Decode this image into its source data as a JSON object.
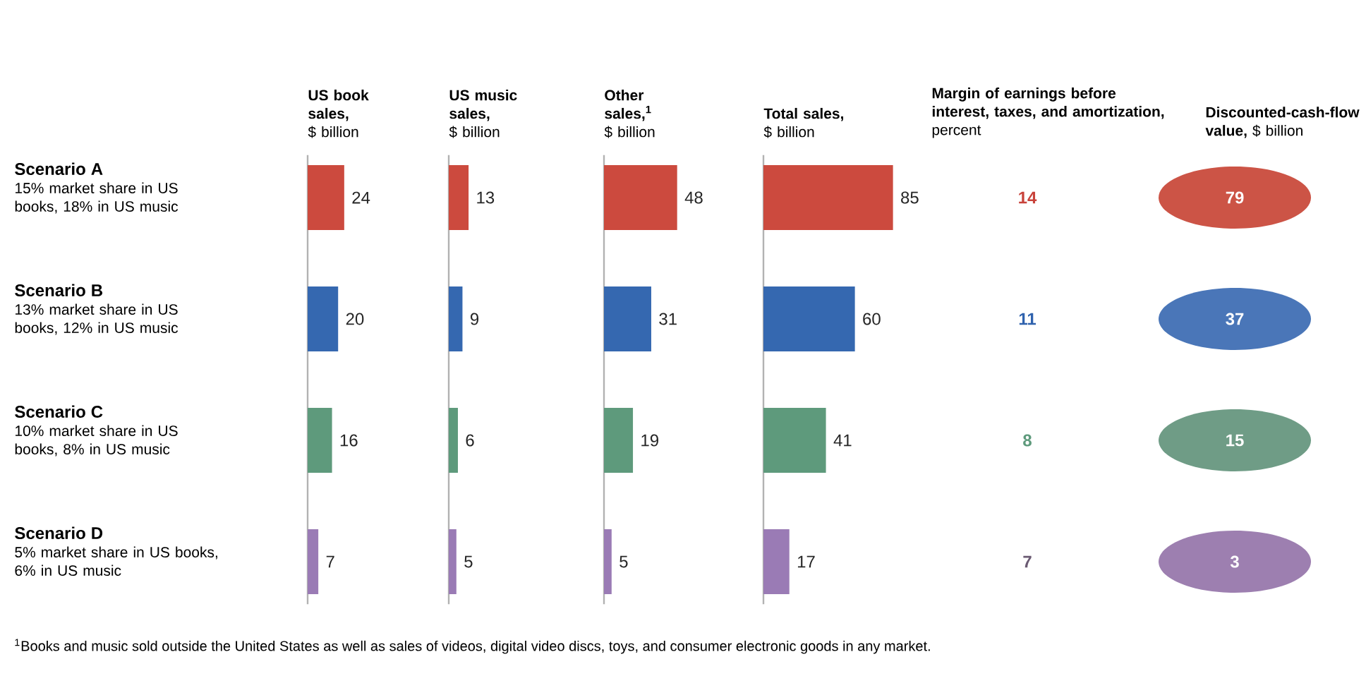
{
  "chart_data": [
    {
      "type": "bar",
      "orientation": "horizontal",
      "title": "US book sales,",
      "subtitle": "$ billion",
      "categories": [
        "Scenario A",
        "Scenario B",
        "Scenario C",
        "Scenario D"
      ],
      "values": [
        24,
        20,
        16,
        7
      ],
      "colors": [
        "#cc4a3e",
        "#3568b0",
        "#5e9a7c",
        "#9a7bb5"
      ],
      "data_labels": true,
      "annotations": [
        "15% market share in US books, 18% in US music",
        "13% market share in US books, 12% in US music",
        "10% market share in US books, 8% in US music",
        "5% market share in US books, 6% in US music"
      ]
    },
    {
      "type": "bar",
      "orientation": "horizontal",
      "title": "US music sales,",
      "subtitle": "$ billion",
      "categories": [
        null,
        null,
        null,
        null
      ],
      "values": [
        13,
        9,
        6,
        5
      ],
      "colors": [
        "#cc4a3e",
        "#3568b0",
        "#5e9a7c",
        "#9a7bb5"
      ],
      "data_labels": true
    },
    {
      "type": "bar",
      "orientation": "horizontal",
      "title": "Other sales,$^{1}$",
      "subtitle": "$ billion",
      "categories": [
        null,
        null,
        null,
        null
      ],
      "values": [
        48,
        31,
        19,
        5
      ],
      "colors": [
        "#cc4a3e",
        "#3568b0",
        "#5e9a7c",
        "#9a7bb5"
      ],
      "data_labels": true
    },
    {
      "type": "bar",
      "orientation": "horizontal",
      "title": "Total sales,",
      "subtitle": "$ billion",
      "categories": [
        null,
        null,
        null,
        null
      ],
      "values": [
        85,
        60,
        41,
        17
      ],
      "colors": [
        "#cc4a3e",
        "#3568b0",
        "#5e9a7c",
        "#9a7bb5"
      ],
      "data_labels": true
    },
    {
      "type": "other",
      "title": "Margin of earnings before interest, taxes, and amortization,",
      "subtitle": "percent",
      "categories": [
        null,
        null,
        null,
        null
      ],
      "values": [
        14,
        11,
        8,
        7
      ],
      "colors": [
        "#c8423a",
        "#2f62ad",
        "#5e9a7c",
        "#6a5a72"
      ],
      "data_labels": true
    },
    {
      "type": "other",
      "title": "Discounted-cash-flow value,",
      "subtitle": "$ billion",
      "categories": [
        null,
        null,
        null,
        null
      ],
      "values": [
        79,
        37,
        15,
        3
      ],
      "colors": [
        "#cc5446",
        "#4a76b8",
        "#6f9c86",
        "#9d7fb0"
      ],
      "data_labels": true,
      "annotations": [
        "$^{1}$Books and music sold outside the United States as well as sales of videos, digital video discs, toys, and consumer electronic goods in any market."
      ]
    }
  ]
}
